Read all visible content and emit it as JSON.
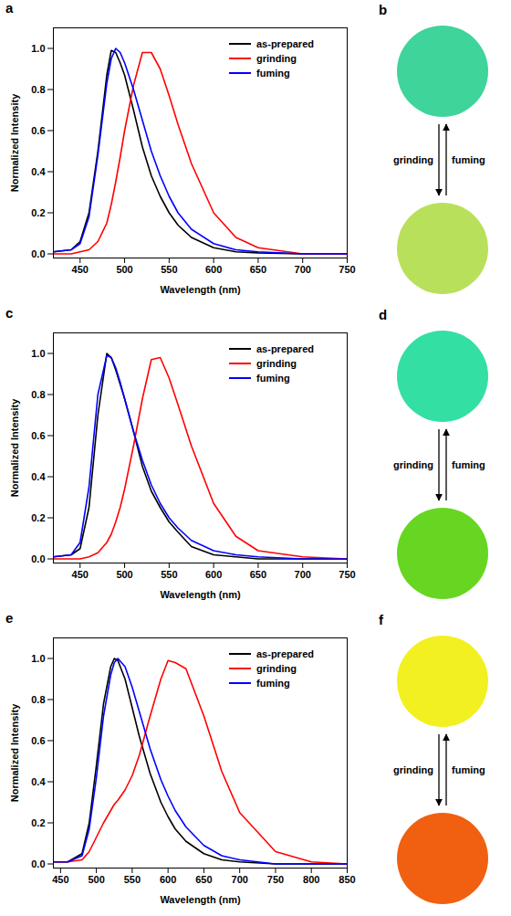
{
  "chart_data": [
    {
      "type": "line",
      "label": "a",
      "xlabel": "Wavelength (nm)",
      "ylabel": "Normalized Intensity",
      "x": [
        420,
        440,
        450,
        460,
        470,
        480,
        485,
        490,
        495,
        500,
        510,
        520,
        530,
        540,
        550,
        560,
        575,
        600,
        625,
        650,
        700,
        750
      ],
      "series": [
        {
          "name": "as-prepared",
          "color": "#000000",
          "values": [
            0.01,
            0.02,
            0.06,
            0.2,
            0.5,
            0.87,
            0.99,
            0.98,
            0.93,
            0.87,
            0.7,
            0.52,
            0.38,
            0.28,
            0.2,
            0.14,
            0.08,
            0.03,
            0.01,
            0.005,
            0,
            0
          ]
        },
        {
          "name": "grinding",
          "color": "#ff0000",
          "values": [
            0,
            0,
            0.01,
            0.02,
            0.06,
            0.15,
            0.24,
            0.35,
            0.47,
            0.6,
            0.82,
            0.98,
            0.98,
            0.9,
            0.77,
            0.63,
            0.44,
            0.2,
            0.08,
            0.03,
            0,
            0
          ]
        },
        {
          "name": "fuming",
          "color": "#0000ff",
          "values": [
            0.01,
            0.02,
            0.05,
            0.18,
            0.48,
            0.83,
            0.95,
            1.0,
            0.98,
            0.93,
            0.8,
            0.65,
            0.5,
            0.38,
            0.28,
            0.2,
            0.12,
            0.05,
            0.02,
            0.01,
            0,
            0
          ]
        }
      ],
      "xlim": [
        420,
        750
      ],
      "xticks": [
        450,
        500,
        550,
        600,
        650,
        700,
        750
      ],
      "ylim": [
        -0.02,
        1.1
      ],
      "yticks": [
        {
          "value": 0,
          "label": "0.0"
        },
        0.2,
        0.4,
        0.6,
        0.8,
        {
          "value": 1,
          "label": "1.0"
        }
      ],
      "legend": "upper right"
    },
    {
      "type": "line",
      "label": "c",
      "xlabel": "Wavelength (nm)",
      "ylabel": "Normalized Intensity",
      "x": [
        420,
        440,
        450,
        460,
        470,
        480,
        485,
        490,
        495,
        500,
        510,
        520,
        530,
        540,
        550,
        560,
        575,
        600,
        625,
        650,
        700,
        750
      ],
      "series": [
        {
          "name": "as-prepared",
          "color": "#000000",
          "values": [
            0.01,
            0.02,
            0.05,
            0.25,
            0.7,
            1.0,
            0.98,
            0.92,
            0.85,
            0.78,
            0.62,
            0.45,
            0.33,
            0.25,
            0.18,
            0.13,
            0.06,
            0.02,
            0.01,
            0,
            0,
            0
          ]
        },
        {
          "name": "grinding",
          "color": "#ff0000",
          "values": [
            0,
            0,
            0,
            0.01,
            0.03,
            0.08,
            0.12,
            0.18,
            0.25,
            0.34,
            0.55,
            0.78,
            0.97,
            0.98,
            0.88,
            0.75,
            0.55,
            0.27,
            0.11,
            0.04,
            0.01,
            0
          ]
        },
        {
          "name": "fuming",
          "color": "#0000ff",
          "values": [
            0.01,
            0.02,
            0.08,
            0.35,
            0.8,
            0.99,
            0.98,
            0.93,
            0.86,
            0.78,
            0.62,
            0.48,
            0.36,
            0.27,
            0.2,
            0.15,
            0.09,
            0.04,
            0.02,
            0.01,
            0,
            0
          ]
        }
      ],
      "xlim": [
        420,
        750
      ],
      "xticks": [
        450,
        500,
        550,
        600,
        650,
        700,
        750
      ],
      "ylim": [
        -0.02,
        1.1
      ],
      "yticks": [
        {
          "value": 0,
          "label": "0.0"
        },
        0.2,
        0.4,
        0.6,
        0.8,
        {
          "value": 1,
          "label": "1.0"
        }
      ],
      "legend": "upper right"
    },
    {
      "type": "line",
      "label": "e",
      "xlabel": "Wavelength (nm)",
      "ylabel": "Normalized Intensity",
      "x": [
        440,
        460,
        480,
        490,
        500,
        510,
        520,
        525,
        530,
        540,
        550,
        560,
        575,
        590,
        600,
        610,
        625,
        650,
        675,
        700,
        750,
        800,
        850
      ],
      "series": [
        {
          "name": "as-prepared",
          "color": "#000000",
          "values": [
            0.01,
            0.01,
            0.05,
            0.2,
            0.48,
            0.78,
            0.96,
            1.0,
            0.99,
            0.9,
            0.76,
            0.62,
            0.44,
            0.3,
            0.23,
            0.17,
            0.11,
            0.05,
            0.02,
            0.01,
            0,
            0,
            0
          ]
        },
        {
          "name": "grinding",
          "color": "#ff0000",
          "values": [
            0.01,
            0.01,
            0.02,
            0.06,
            0.13,
            0.2,
            0.26,
            0.29,
            0.31,
            0.36,
            0.43,
            0.53,
            0.72,
            0.9,
            0.99,
            0.98,
            0.95,
            0.72,
            0.45,
            0.25,
            0.06,
            0.01,
            0
          ]
        },
        {
          "name": "fuming",
          "color": "#0000ff",
          "values": [
            0.01,
            0.01,
            0.04,
            0.17,
            0.42,
            0.72,
            0.92,
            0.98,
            1.0,
            0.96,
            0.86,
            0.74,
            0.56,
            0.41,
            0.33,
            0.26,
            0.18,
            0.09,
            0.04,
            0.02,
            0,
            0,
            0
          ]
        }
      ],
      "xlim": [
        440,
        850
      ],
      "xticks": [
        450,
        500,
        550,
        600,
        650,
        700,
        750,
        800,
        850
      ],
      "ylim": [
        -0.02,
        1.1
      ],
      "yticks": [
        {
          "value": 0,
          "label": "0.0"
        },
        0.2,
        0.4,
        0.6,
        0.8,
        {
          "value": 1,
          "label": "1.0"
        }
      ],
      "legend": "upper right"
    }
  ],
  "photos": [
    {
      "label": "b",
      "colors": [
        "#3fd49a",
        "#b8e05a"
      ],
      "arrow_labels": [
        "grinding",
        "fuming"
      ]
    },
    {
      "label": "d",
      "colors": [
        "#33dfa2",
        "#66d622"
      ],
      "arrow_labels": [
        "grinding",
        "fuming"
      ]
    },
    {
      "label": "f",
      "colors": [
        "#f2f020",
        "#f06010"
      ],
      "arrow_labels": [
        "grinding",
        "fuming"
      ]
    }
  ]
}
